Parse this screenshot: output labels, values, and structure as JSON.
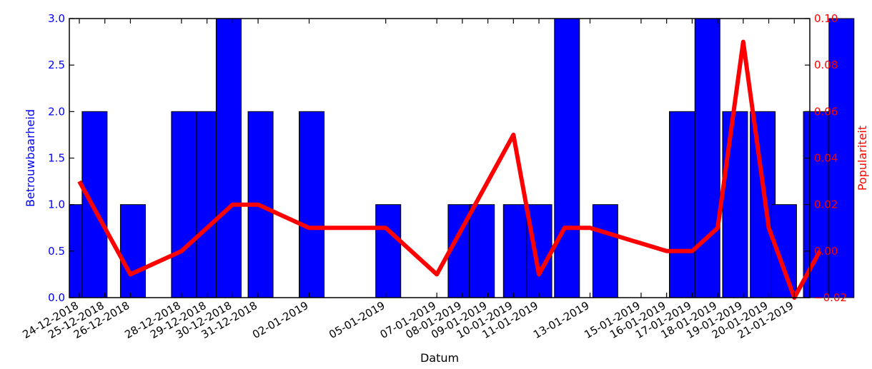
{
  "chart_data": {
    "type": "bar",
    "xlabel": "Datum",
    "ylabel_left": "Betrouwbaarheid",
    "ylabel_right": "Populariteit",
    "ylim_left": [
      0,
      3
    ],
    "ylim_right": [
      -0.02,
      0.1
    ],
    "yticks_left": [
      "0.0",
      "0.5",
      "1.0",
      "1.5",
      "2.0",
      "2.5",
      "3.0"
    ],
    "yticks_right": [
      "−0.02",
      "0.00",
      "0.02",
      "0.04",
      "0.06",
      "0.08",
      "0.10"
    ],
    "xlim": [
      "2018-12-24",
      "2019-01-22"
    ],
    "grid": false,
    "colors": {
      "bars": "#0000ff",
      "line": "#ff0000",
      "left_axis": "#0000ff",
      "right_axis": "#ff0000"
    },
    "categories": [
      "24-12-2018",
      "25-12-2018",
      "26-12-2018",
      "28-12-2018",
      "29-12-2018",
      "30-12-2018",
      "31-12-2018",
      "02-01-2019",
      "05-01-2019",
      "07-01-2019",
      "08-01-2019",
      "09-01-2019",
      "10-01-2019",
      "11-01-2019",
      "13-01-2019",
      "15-01-2019",
      "16-01-2019",
      "17-01-2019",
      "18-01-2019",
      "19-01-2019",
      "20-01-2019",
      "21-01-2019"
    ],
    "series": [
      {
        "type": "bar",
        "axis": "left",
        "points": [
          {
            "x": "2018-12-24",
            "y": 1
          },
          {
            "x": "2018-12-24T12:00",
            "y": 2
          },
          {
            "x": "2018-12-26",
            "y": 1
          },
          {
            "x": "2018-12-28",
            "y": 2
          },
          {
            "x": "2018-12-29",
            "y": 2
          },
          {
            "x": "2018-12-29T18:00",
            "y": 3
          },
          {
            "x": "2018-12-31",
            "y": 2
          },
          {
            "x": "2019-01-02",
            "y": 2
          },
          {
            "x": "2019-01-05",
            "y": 1
          },
          {
            "x": "2019-01-07T20:00",
            "y": 1
          },
          {
            "x": "2019-01-08T16:00",
            "y": 1
          },
          {
            "x": "2019-01-10",
            "y": 1
          },
          {
            "x": "2019-01-10T22:00",
            "y": 1
          },
          {
            "x": "2019-01-12",
            "y": 3
          },
          {
            "x": "2019-01-13T12:00",
            "y": 1
          },
          {
            "x": "2019-01-16T12:00",
            "y": 2
          },
          {
            "x": "2019-01-17T12:00",
            "y": 3
          },
          {
            "x": "2019-01-18T14:00",
            "y": 2
          },
          {
            "x": "2019-01-19T16:00",
            "y": 2
          },
          {
            "x": "2019-01-20T12:00",
            "y": 1
          },
          {
            "x": "2019-01-21T18:00",
            "y": 2
          },
          {
            "x": "2019-01-22T18:00",
            "y": 3
          }
        ]
      },
      {
        "type": "line",
        "axis": "right",
        "points": [
          {
            "x": "2018-12-24",
            "y": 0.03
          },
          {
            "x": "2018-12-25",
            "y": 0.01
          },
          {
            "x": "2018-12-26",
            "y": -0.01
          },
          {
            "x": "2018-12-28",
            "y": 0
          },
          {
            "x": "2018-12-29",
            "y": 0.01
          },
          {
            "x": "2018-12-30",
            "y": 0.02
          },
          {
            "x": "2018-12-31",
            "y": 0.02
          },
          {
            "x": "2019-01-02",
            "y": 0.01
          },
          {
            "x": "2019-01-05",
            "y": 0.01
          },
          {
            "x": "2019-01-07",
            "y": -0.01
          },
          {
            "x": "2019-01-08",
            "y": 0.01
          },
          {
            "x": "2019-01-10",
            "y": 0.05
          },
          {
            "x": "2019-01-11",
            "y": -0.01
          },
          {
            "x": "2019-01-12",
            "y": 0.01
          },
          {
            "x": "2019-01-13",
            "y": 0.01
          },
          {
            "x": "2019-01-16",
            "y": 0
          },
          {
            "x": "2019-01-17",
            "y": 0
          },
          {
            "x": "2019-01-18",
            "y": 0.01
          },
          {
            "x": "2019-01-19",
            "y": 0.09
          },
          {
            "x": "2019-01-20",
            "y": 0.01
          },
          {
            "x": "2019-01-21",
            "y": -0.02
          },
          {
            "x": "2019-01-22",
            "y": 0
          }
        ]
      }
    ]
  }
}
